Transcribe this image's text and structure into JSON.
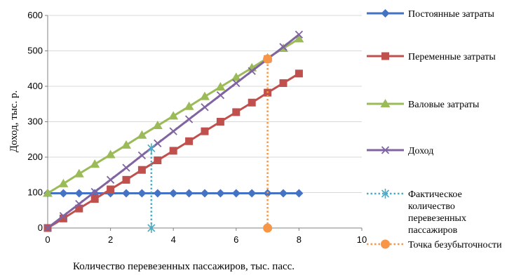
{
  "chart_data": {
    "type": "line",
    "xlabel": "Количество перевезенных пассажиров, тыс. пасс.",
    "ylabel": "Доход, тыс. р.",
    "xlim": [
      0,
      10
    ],
    "ylim": [
      0,
      600
    ],
    "xticks": [
      0,
      2,
      4,
      6,
      8,
      10
    ],
    "yticks": [
      0,
      100,
      200,
      300,
      400,
      500,
      600
    ],
    "grid": "horizontal",
    "legend_position": "right",
    "series": [
      {
        "name": "Постоянные затраты",
        "color": "#4472C4",
        "marker": "diamond",
        "line": "solid",
        "x": [
          0,
          0.5,
          1,
          1.5,
          2,
          2.5,
          3,
          3.5,
          4,
          4.5,
          5,
          5.5,
          6,
          6.5,
          7,
          7.5,
          8
        ],
        "y": [
          98,
          98,
          98,
          98,
          98,
          98,
          98,
          98,
          98,
          98,
          98,
          98,
          98,
          98,
          98,
          98,
          98
        ]
      },
      {
        "name": "Переменные затраты",
        "color": "#C0504D",
        "marker": "square",
        "line": "solid",
        "x": [
          0,
          0.5,
          1,
          1.5,
          2,
          2.5,
          3,
          3.5,
          4,
          4.5,
          5,
          5.5,
          6,
          6.5,
          7,
          7.5,
          8
        ],
        "y": [
          0,
          27,
          55,
          82,
          109,
          136,
          164,
          191,
          218,
          245,
          273,
          300,
          327,
          354,
          382,
          409,
          436
        ]
      },
      {
        "name": "Валовые затраты",
        "color": "#9BBB59",
        "marker": "triangle",
        "line": "solid",
        "x": [
          0,
          0.5,
          1,
          1.5,
          2,
          2.5,
          3,
          3.5,
          4,
          4.5,
          5,
          5.5,
          6,
          6.5,
          7,
          7.5,
          8
        ],
        "y": [
          98,
          125,
          153,
          180,
          207,
          234,
          262,
          289,
          316,
          343,
          371,
          398,
          425,
          452,
          480,
          507,
          534
        ]
      },
      {
        "name": "Доход",
        "color": "#8064A2",
        "marker": "x",
        "line": "solid",
        "x": [
          0,
          0.5,
          1,
          1.5,
          2,
          2.5,
          3,
          3.5,
          4,
          4.5,
          5,
          5.5,
          6,
          6.5,
          7,
          7.5,
          8
        ],
        "y": [
          0,
          34,
          68,
          102,
          136,
          170,
          205,
          239,
          273,
          307,
          341,
          375,
          409,
          443,
          477,
          511,
          546
        ]
      },
      {
        "name": "Фактическое количество перевезенных пассажиров",
        "legend_lines": [
          "Фактическое",
          "количество",
          "перевезенных",
          "пассажиров"
        ],
        "color": "#4BACC6",
        "marker": "asterisk",
        "line": "dotted",
        "x": [
          3.3,
          3.3
        ],
        "y": [
          0,
          225
        ]
      },
      {
        "name": "Точка безубыточности",
        "color": "#F79646",
        "marker": "circle",
        "line": "dotted",
        "x": [
          7,
          7
        ],
        "y": [
          0,
          477
        ]
      }
    ]
  }
}
